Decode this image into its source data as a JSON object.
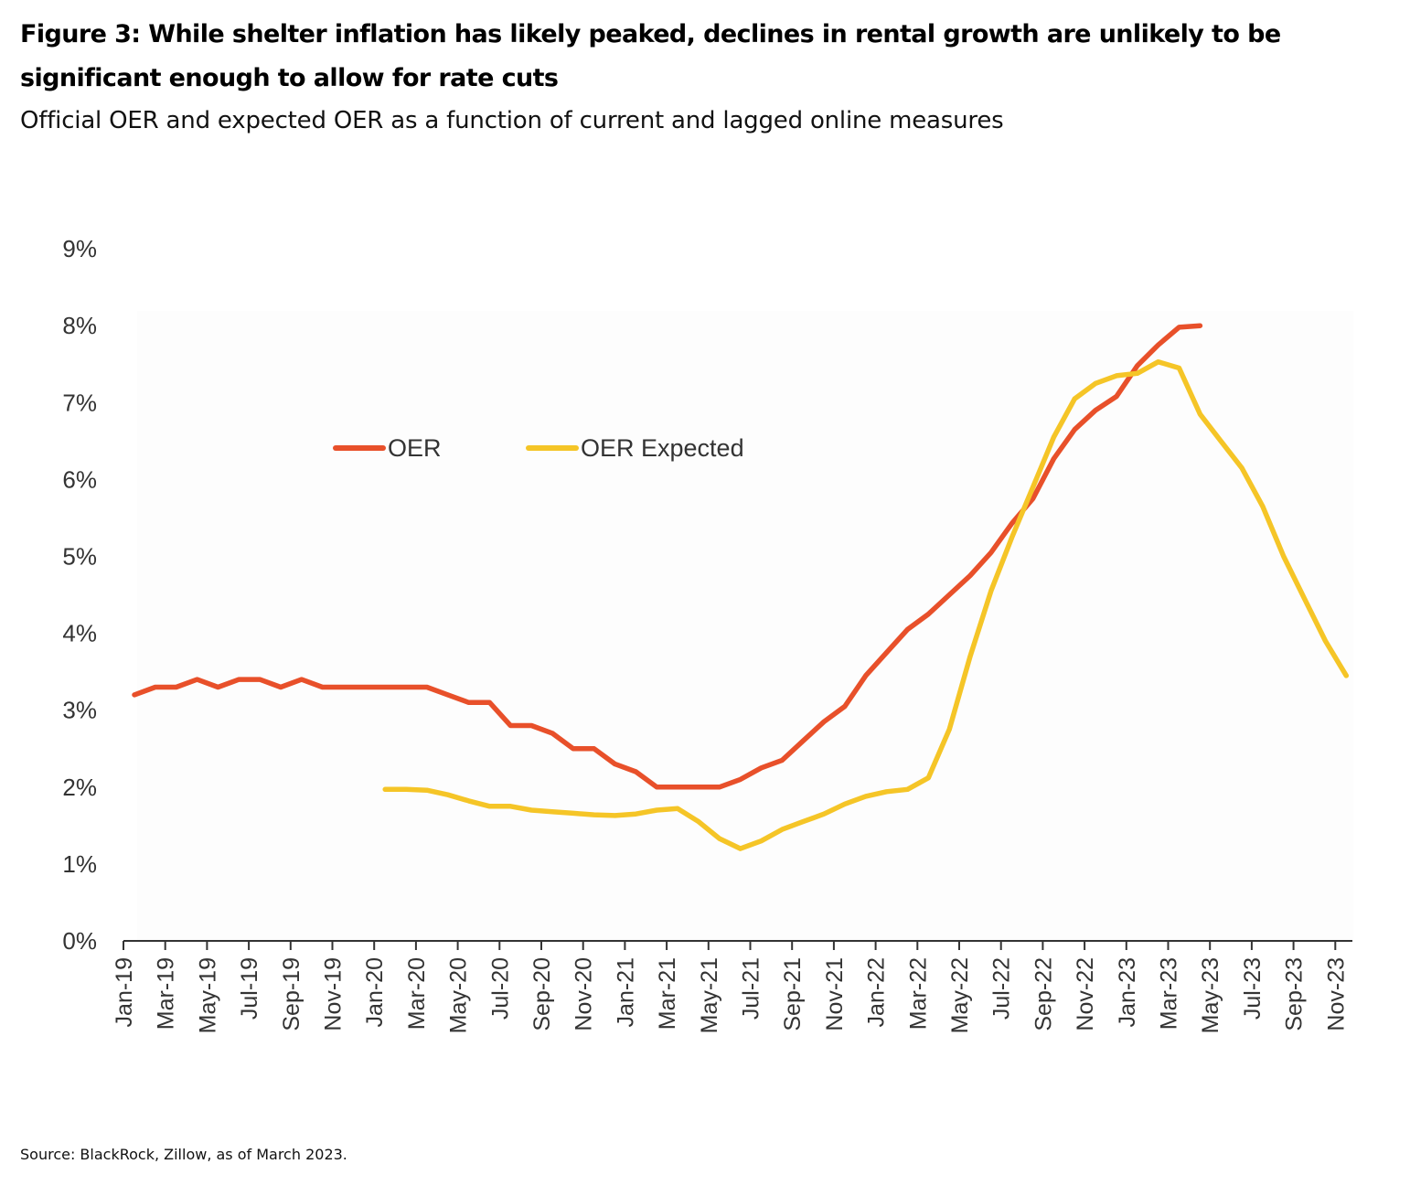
{
  "figure": {
    "title": "Figure 3: While shelter inflation has likely peaked, declines in rental growth are unlikely to be significant enough to allow for rate cuts",
    "subtitle": "Official OER and expected OER as a function of current and lagged online measures",
    "source": "Source: BlackRock, Zillow, as of March 2023."
  },
  "chart_data": {
    "type": "line",
    "title": "Figure 3: While shelter inflation has likely peaked, declines in rental growth are unlikely to be significant enough to allow for rate cuts",
    "subtitle": "Official OER and expected OER as a function of current and lagged online measures",
    "xlabel": "",
    "ylabel": "",
    "ylim": [
      0,
      9
    ],
    "yticks": [
      0,
      1,
      2,
      3,
      4,
      5,
      6,
      7,
      8,
      9
    ],
    "ytick_labels": [
      "0%",
      "1%",
      "2%",
      "3%",
      "4%",
      "5%",
      "6%",
      "7%",
      "8%",
      "9%"
    ],
    "grid": false,
    "legend_position": "top-left-inside",
    "x_months": [
      "Jan-19",
      "Feb-19",
      "Mar-19",
      "Apr-19",
      "May-19",
      "Jun-19",
      "Jul-19",
      "Aug-19",
      "Sep-19",
      "Oct-19",
      "Nov-19",
      "Dec-19",
      "Jan-20",
      "Feb-20",
      "Mar-20",
      "Apr-20",
      "May-20",
      "Jun-20",
      "Jul-20",
      "Aug-20",
      "Sep-20",
      "Oct-20",
      "Nov-20",
      "Dec-20",
      "Jan-21",
      "Feb-21",
      "Mar-21",
      "Apr-21",
      "May-21",
      "Jun-21",
      "Jul-21",
      "Aug-21",
      "Sep-21",
      "Oct-21",
      "Nov-21",
      "Dec-21",
      "Jan-22",
      "Feb-22",
      "Mar-22",
      "Apr-22",
      "May-22",
      "Jun-22",
      "Jul-22",
      "Aug-22",
      "Sep-22",
      "Oct-22",
      "Nov-22",
      "Dec-22",
      "Jan-23",
      "Feb-23",
      "Mar-23",
      "Apr-23",
      "May-23",
      "Jun-23",
      "Jul-23",
      "Aug-23",
      "Sep-23",
      "Oct-23",
      "Nov-23"
    ],
    "xtick_labels": [
      "Jan-19",
      "Mar-19",
      "May-19",
      "Jul-19",
      "Sep-19",
      "Nov-19",
      "Jan-20",
      "Mar-20",
      "May-20",
      "Jul-20",
      "Sep-20",
      "Nov-20",
      "Jan-21",
      "Mar-21",
      "May-21",
      "Jul-21",
      "Sep-21",
      "Nov-21",
      "Jan-22",
      "Mar-22",
      "May-22",
      "Jul-22",
      "Sep-22",
      "Nov-22",
      "Jan-23",
      "Mar-23",
      "May-23",
      "Jul-23",
      "Sep-23",
      "Nov-23"
    ],
    "series": [
      {
        "name": "OER",
        "color": "#E8502A",
        "start_index": 0,
        "values": [
          3.2,
          3.3,
          3.3,
          3.4,
          3.3,
          3.4,
          3.4,
          3.3,
          3.4,
          3.3,
          3.3,
          3.3,
          3.3,
          3.3,
          3.3,
          3.2,
          3.1,
          3.1,
          2.8,
          2.8,
          2.7,
          2.5,
          2.5,
          2.3,
          2.2,
          2.0,
          2.0,
          2.0,
          2.0,
          2.1,
          2.25,
          2.35,
          2.6,
          2.85,
          3.05,
          3.45,
          3.75,
          4.05,
          4.25,
          4.5,
          4.75,
          5.05,
          5.43,
          5.75,
          6.27,
          6.65,
          6.9,
          7.08,
          7.48,
          7.75,
          7.98,
          8.0
        ]
      },
      {
        "name": "OER Expected",
        "color": "#F5C527",
        "start_index": 12,
        "values": [
          1.97,
          1.97,
          1.96,
          1.9,
          1.82,
          1.75,
          1.75,
          1.7,
          1.68,
          1.66,
          1.64,
          1.63,
          1.65,
          1.7,
          1.72,
          1.55,
          1.33,
          1.2,
          1.3,
          1.45,
          1.55,
          1.65,
          1.78,
          1.88,
          1.94,
          1.97,
          2.12,
          2.75,
          3.7,
          4.55,
          5.25,
          5.9,
          6.55,
          7.05,
          7.25,
          7.35,
          7.38,
          7.53,
          7.45,
          6.85,
          6.5,
          6.15,
          5.65,
          5.0,
          4.45,
          3.9,
          3.45
        ]
      }
    ]
  }
}
